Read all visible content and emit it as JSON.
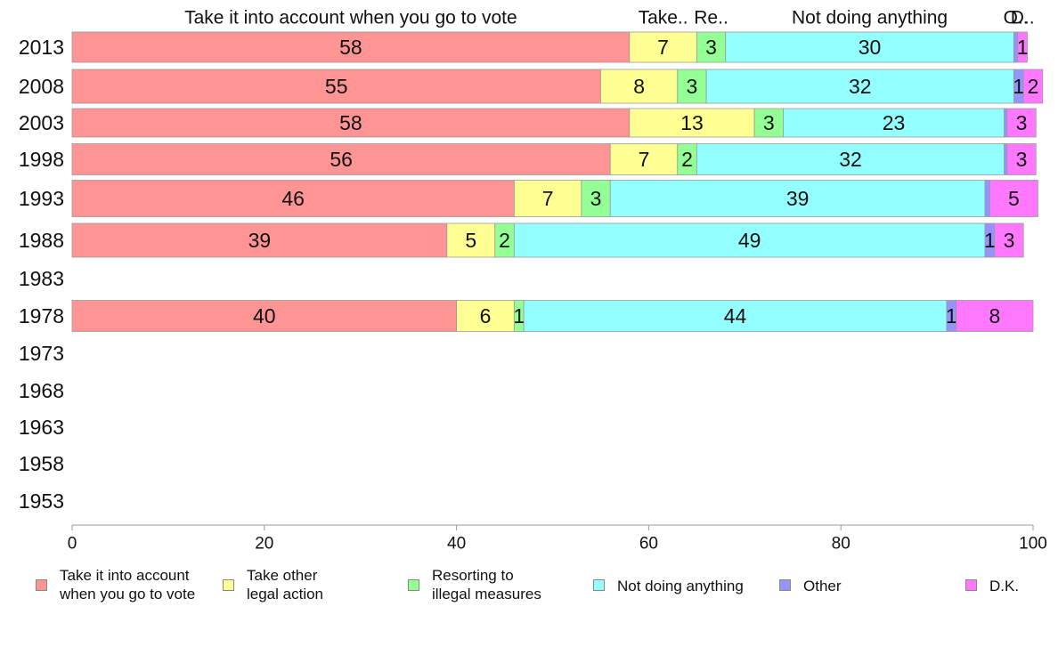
{
  "chart_data": {
    "type": "bar",
    "orientation": "horizontal",
    "stacked": true,
    "categories": [
      "2013",
      "2008",
      "2003",
      "1998",
      "1993",
      "1988",
      "1983",
      "1978",
      "1973",
      "1968",
      "1963",
      "1958",
      "1953"
    ],
    "series": [
      {
        "name": "Take it into account when you go to vote",
        "legend_label": "Take it into account\nwhen you go to vote",
        "top_label": "Take it into account when you go to vote",
        "color": "#ff9494",
        "values": [
          58,
          55,
          58,
          56,
          46,
          39,
          null,
          40,
          null,
          null,
          null,
          null,
          null
        ]
      },
      {
        "name": "Take other legal action",
        "legend_label": "Take other\nlegal action",
        "top_label": "Take..",
        "color": "#ffff94",
        "values": [
          7,
          8,
          13,
          7,
          7,
          5,
          null,
          6,
          null,
          null,
          null,
          null,
          null
        ]
      },
      {
        "name": "Resorting to illegal measures",
        "legend_label": "Resorting to\nillegal measures",
        "top_label": "Re..",
        "color": "#94ff94",
        "values": [
          3,
          3,
          3,
          2,
          3,
          2,
          null,
          1,
          null,
          null,
          null,
          null,
          null
        ]
      },
      {
        "name": "Not doing anything",
        "legend_label": "Not doing anything",
        "top_label": "Not doing anything",
        "color": "#94ffff",
        "values": [
          30,
          32,
          23,
          32,
          39,
          49,
          null,
          44,
          null,
          null,
          null,
          null,
          null
        ]
      },
      {
        "name": "Other",
        "legend_label": "Other",
        "top_label": "O..",
        "color": "#9494ff",
        "values": [
          0.4,
          1,
          0.3,
          0.3,
          0.5,
          1,
          null,
          1,
          null,
          null,
          null,
          null,
          null
        ]
      },
      {
        "name": "D.K.",
        "legend_label": "D.K.",
        "top_label": "D..",
        "color": "#ff78ff",
        "values": [
          1,
          2,
          3,
          3,
          5,
          3,
          null,
          8,
          null,
          null,
          null,
          null,
          null
        ]
      }
    ],
    "xlim": [
      0,
      100
    ],
    "xticks": [
      0,
      20,
      40,
      60,
      80,
      100
    ],
    "grid": false,
    "legend_position": "bottom"
  }
}
